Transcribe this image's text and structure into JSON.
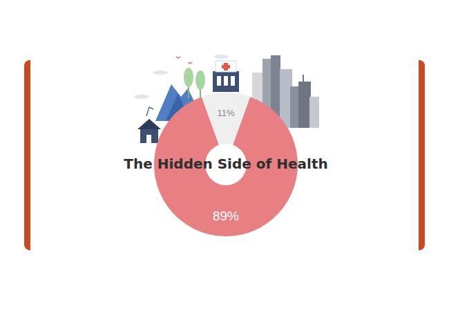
{
  "chart_data": {
    "type": "donut",
    "title": "The Hidden Side of Health",
    "values": [
      11,
      89
    ],
    "value_labels": [
      "11%",
      "89%"
    ],
    "colors": [
      "#efefef",
      "#e88083"
    ],
    "data_labels": true
  }
}
